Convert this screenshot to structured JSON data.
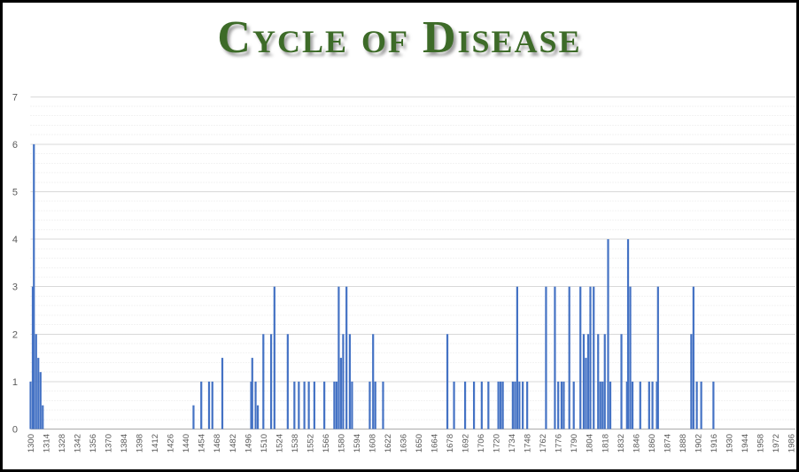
{
  "title": "Cycle of Disease",
  "colors": {
    "bar": "#4472C4",
    "title_green": "#3D6B28",
    "axis_text": "#595959",
    "grid_major": "#D9D9D9",
    "grid_minor": "#E7E7E7",
    "axis_line": "#ABABAB",
    "frame": "#000000"
  },
  "chart_data": {
    "type": "bar",
    "title": "Cycle of Disease",
    "xlabel": "",
    "ylabel": "",
    "legend": "none",
    "grid": "horizontal major solid lines at integers, minor dotted lines every 0.2",
    "ylim": [
      0,
      7
    ],
    "y_ticks": [
      0,
      1,
      2,
      3,
      4,
      5,
      6,
      7
    ],
    "x_axis": {
      "start_year": 1300,
      "end_year": 1986,
      "tick_interval_years": 14,
      "tick_labels": [
        "1300",
        "1314",
        "1328",
        "1342",
        "1356",
        "1370",
        "1384",
        "1398",
        "1412",
        "1426",
        "1440",
        "1454",
        "1468",
        "1482",
        "1496",
        "1510",
        "1524",
        "1538",
        "1552",
        "1566",
        "1580",
        "1594",
        "1608",
        "1622",
        "1636",
        "1650",
        "1664",
        "1678",
        "1692",
        "1706",
        "1720",
        "1734",
        "1748",
        "1762",
        "1776",
        "1790",
        "1804",
        "1818",
        "1832",
        "1846",
        "1860",
        "1874",
        "1888",
        "1902",
        "1916",
        "1930",
        "1944",
        "1958",
        "1972",
        "1986"
      ],
      "label_rotation_deg": 90
    },
    "points_format": "[year, outbreak_count]",
    "points": [
      [
        1300,
        1
      ],
      [
        1302,
        3
      ],
      [
        1303,
        6
      ],
      [
        1305,
        2
      ],
      [
        1307,
        1.5
      ],
      [
        1309,
        1.2
      ],
      [
        1311,
        0.5
      ],
      [
        1447,
        0.5
      ],
      [
        1454,
        1
      ],
      [
        1461,
        1
      ],
      [
        1464,
        1
      ],
      [
        1473,
        1.5
      ],
      [
        1499,
        1
      ],
      [
        1500,
        1.5
      ],
      [
        1503,
        1
      ],
      [
        1505,
        0.5
      ],
      [
        1510,
        2
      ],
      [
        1517,
        2
      ],
      [
        1520,
        3
      ],
      [
        1532,
        2
      ],
      [
        1538,
        1
      ],
      [
        1542,
        1
      ],
      [
        1547,
        1
      ],
      [
        1551,
        1
      ],
      [
        1556,
        1
      ],
      [
        1565,
        1
      ],
      [
        1574,
        1
      ],
      [
        1576,
        1
      ],
      [
        1578,
        3
      ],
      [
        1580,
        1.5
      ],
      [
        1582,
        2
      ],
      [
        1585,
        3
      ],
      [
        1588,
        2
      ],
      [
        1590,
        1
      ],
      [
        1606,
        1
      ],
      [
        1609,
        2
      ],
      [
        1611,
        1
      ],
      [
        1618,
        1
      ],
      [
        1676,
        2
      ],
      [
        1682,
        1
      ],
      [
        1692,
        1
      ],
      [
        1700,
        1
      ],
      [
        1707,
        1
      ],
      [
        1713,
        1
      ],
      [
        1722,
        1
      ],
      [
        1724,
        1
      ],
      [
        1726,
        1
      ],
      [
        1735,
        1
      ],
      [
        1737,
        1
      ],
      [
        1739,
        3
      ],
      [
        1741,
        1
      ],
      [
        1744,
        1
      ],
      [
        1748,
        1
      ],
      [
        1765,
        3
      ],
      [
        1773,
        3
      ],
      [
        1776,
        1
      ],
      [
        1779,
        1
      ],
      [
        1781,
        1
      ],
      [
        1786,
        3
      ],
      [
        1790,
        1
      ],
      [
        1796,
        3
      ],
      [
        1799,
        2
      ],
      [
        1801,
        1.5
      ],
      [
        1803,
        2
      ],
      [
        1805,
        3
      ],
      [
        1808,
        3
      ],
      [
        1812,
        2
      ],
      [
        1814,
        1
      ],
      [
        1816,
        1
      ],
      [
        1818,
        2
      ],
      [
        1821,
        4
      ],
      [
        1823,
        1
      ],
      [
        1833,
        2
      ],
      [
        1838,
        1
      ],
      [
        1839,
        4
      ],
      [
        1841,
        3
      ],
      [
        1843,
        1
      ],
      [
        1850,
        1
      ],
      [
        1858,
        1
      ],
      [
        1861,
        1
      ],
      [
        1865,
        1
      ],
      [
        1866,
        3
      ],
      [
        1896,
        2
      ],
      [
        1898,
        3
      ],
      [
        1901,
        1
      ],
      [
        1905,
        1
      ],
      [
        1916,
        1
      ]
    ]
  }
}
